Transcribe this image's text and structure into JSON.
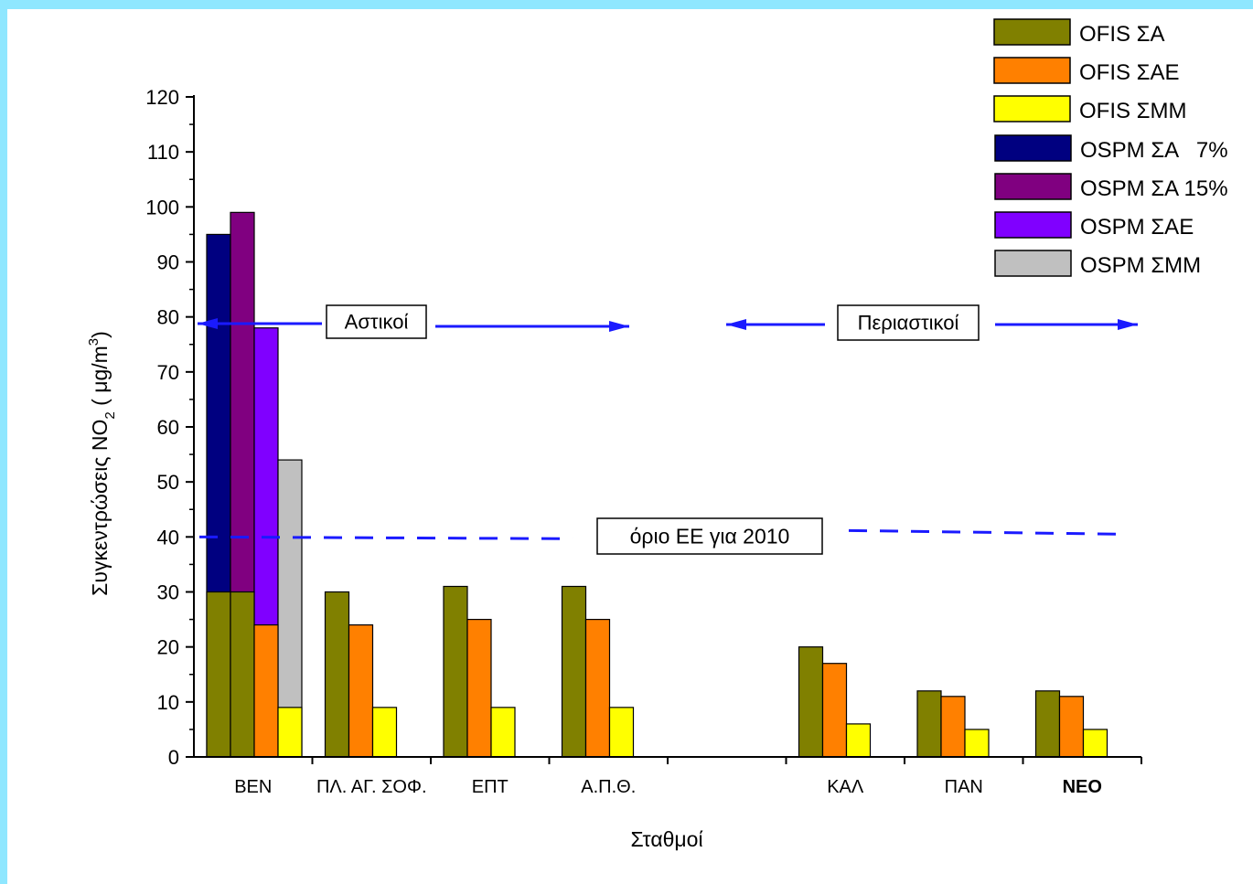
{
  "colors": {
    "page_border": "#8fe7ff",
    "OFIS ΣΑ": "#808000",
    "OFIS ΣΑΕ": "#ff8000",
    "OFIS ΣΜΜ": "#ffff00",
    "OSPM ΣΑ 7%": "#000080",
    "OSPM ΣΑ 15%": "#800080",
    "OSPM ΣΑΕ": "#8000ff",
    "OSPM ΣΜΜ": "#c0c0c0",
    "annotation_arrows": "#1a1aff"
  },
  "chart_data": {
    "type": "bar",
    "xlabel": "Σταθμοί",
    "ylabel": "Συγκεντρώσεις NO",
    "ylabel_sub": "2",
    "ylabel_unit_open": " ( μg/m",
    "ylabel_unit_sup": "3",
    "ylabel_unit_close": ")",
    "ylim": [
      0,
      120
    ],
    "yticks": [
      0,
      10,
      20,
      30,
      40,
      50,
      60,
      70,
      80,
      90,
      100,
      110,
      120
    ],
    "grid": false,
    "legend_position": "top-right",
    "categories": [
      "ΒΕΝ",
      "ΠΛ. ΑΓ. ΣΟΦ.",
      "ΕΠΤ",
      "Α.Π.Θ.",
      "",
      "ΚΑΛ",
      "ΠΑΝ",
      "ΝΕΟ"
    ],
    "series": [
      {
        "name": "OFIS ΣΑ",
        "values": [
          30,
          30,
          31,
          31,
          null,
          20,
          12,
          12
        ]
      },
      {
        "name": "OFIS ΣΑΕ",
        "values": [
          24,
          24,
          25,
          25,
          null,
          17,
          11,
          11
        ]
      },
      {
        "name": "OFIS ΣΜΜ",
        "values": [
          9,
          9,
          9,
          9,
          null,
          6,
          5,
          5
        ]
      },
      {
        "name": "OSPM ΣΑ   7%",
        "values": [
          95,
          null,
          null,
          null,
          null,
          null,
          null,
          null
        ]
      },
      {
        "name": "OSPM ΣΑ 15%",
        "values": [
          99,
          null,
          null,
          null,
          null,
          null,
          null,
          null
        ]
      },
      {
        "name": "OSPM ΣΑΕ",
        "values": [
          78,
          null,
          null,
          null,
          null,
          null,
          null,
          null
        ]
      },
      {
        "name": "OSPM ΣΜΜ",
        "values": [
          54,
          null,
          null,
          null,
          null,
          null,
          null,
          null
        ]
      }
    ],
    "annotations": {
      "urban_label": "Αστικοί",
      "suburban_label": "Περιαστικοί",
      "limit_label": "όριο ΕΕ για 2010",
      "limit_value": 40
    }
  }
}
